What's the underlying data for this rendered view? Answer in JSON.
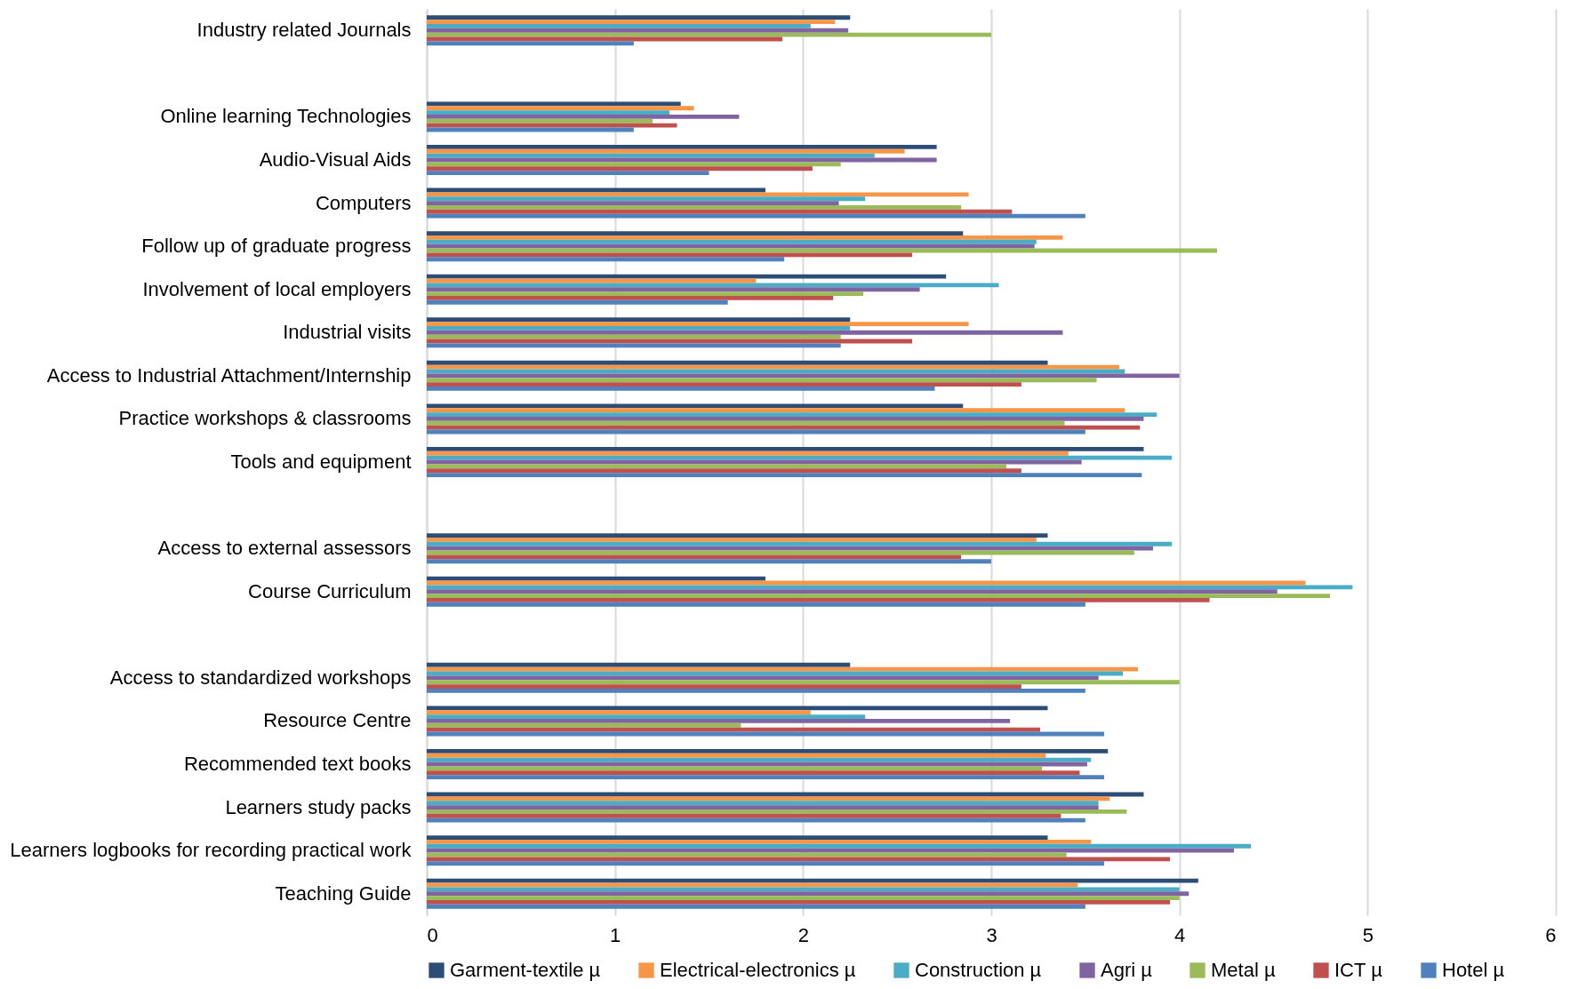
{
  "chart_data": {
    "type": "bar",
    "orientation": "horizontal",
    "categories": [
      "Industry related Journals",
      null,
      "Online learning Technologies",
      "Audio-Visual Aids",
      "Computers",
      "Follow up of graduate progress",
      "Involvement of local employers",
      "Industrial visits",
      "Access to Industrial Attachment/Internship",
      "Practice workshops & classrooms",
      "Tools and equipment",
      null,
      "Access to external assessors",
      "Course Curriculum",
      null,
      "Access to standardized workshops",
      "Resource Centre",
      "Recommended text books",
      "Learners study packs",
      "Learners logbooks for recording practical work",
      "Teaching Guide"
    ],
    "series": [
      {
        "name": "Garment-textile µ",
        "color": "#2c4d75",
        "values": [
          2.25,
          null,
          1.35,
          2.71,
          1.8,
          2.85,
          2.76,
          2.25,
          3.3,
          2.85,
          3.81,
          null,
          3.3,
          1.8,
          null,
          2.25,
          3.3,
          3.62,
          3.81,
          3.3,
          4.1
        ]
      },
      {
        "name": "Electrical-electronics µ",
        "color": "#f79646",
        "values": [
          2.17,
          null,
          1.42,
          2.54,
          2.88,
          3.38,
          1.75,
          2.88,
          3.68,
          3.71,
          3.41,
          null,
          3.24,
          4.67,
          null,
          3.78,
          2.04,
          3.29,
          3.63,
          3.53,
          3.46
        ]
      },
      {
        "name": "Construction µ",
        "color": "#4bacc6",
        "values": [
          2.04,
          null,
          1.29,
          2.38,
          2.33,
          3.24,
          3.04,
          2.25,
          3.71,
          3.88,
          3.96,
          null,
          3.96,
          4.92,
          null,
          3.7,
          2.33,
          3.53,
          3.57,
          4.38,
          4.0
        ]
      },
      {
        "name": "Agri µ",
        "color": "#8064a2",
        "values": [
          2.24,
          null,
          1.66,
          2.71,
          2.19,
          3.23,
          2.62,
          3.38,
          4.0,
          3.81,
          3.48,
          null,
          3.86,
          4.52,
          null,
          3.57,
          3.1,
          3.51,
          3.57,
          4.29,
          4.05
        ]
      },
      {
        "name": "Metal µ",
        "color": "#9bbb59",
        "values": [
          3.0,
          null,
          1.2,
          2.2,
          2.84,
          4.2,
          2.32,
          2.2,
          3.56,
          3.39,
          3.08,
          null,
          3.76,
          4.8,
          null,
          4.0,
          1.67,
          3.27,
          3.72,
          3.4,
          4.0
        ]
      },
      {
        "name": "ICT µ",
        "color": "#c0504d",
        "values": [
          1.89,
          null,
          1.33,
          2.05,
          3.11,
          2.58,
          2.16,
          2.58,
          3.16,
          3.79,
          3.16,
          null,
          2.84,
          4.16,
          null,
          3.16,
          3.26,
          3.47,
          3.37,
          3.95,
          3.95
        ]
      },
      {
        "name": "Hotel µ",
        "color": "#4f81bd",
        "values": [
          1.1,
          null,
          1.1,
          1.5,
          3.5,
          1.9,
          1.6,
          2.2,
          2.7,
          3.5,
          3.8,
          null,
          3.0,
          3.5,
          null,
          3.5,
          3.6,
          3.6,
          3.5,
          3.6,
          3.5
        ]
      }
    ],
    "xlim": [
      0,
      6
    ],
    "xticks": [
      0,
      1,
      2,
      3,
      4,
      5,
      6
    ],
    "grid": "x",
    "legend": "bottom"
  }
}
